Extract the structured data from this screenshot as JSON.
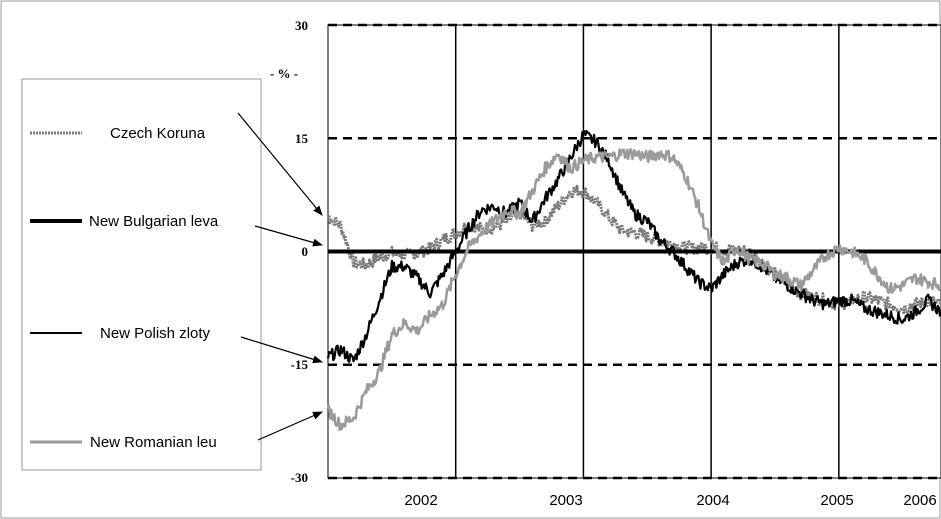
{
  "chart_data": {
    "type": "line",
    "title": "",
    "xlabel": "",
    "ylabel": "- % -",
    "ylim": [
      -30,
      30
    ],
    "yticks": [
      "30",
      "15",
      "0",
      "-15",
      "-30"
    ],
    "x_tick_labels": [
      "2002",
      "2003",
      "2004",
      "2005",
      "2006"
    ],
    "xlim": [
      2001.5,
      2006.3
    ],
    "year_boundaries": [
      2002.5,
      2003.5,
      2004.5,
      2005.5
    ],
    "dashed_gridlines_at": [
      30,
      15,
      -15,
      -30
    ],
    "x": [
      2001.5,
      2001.6,
      2001.7,
      2001.8,
      2001.9,
      2002.0,
      2002.1,
      2002.2,
      2002.3,
      2002.4,
      2002.5,
      2002.6,
      2002.7,
      2002.8,
      2002.9,
      2003.0,
      2003.1,
      2003.2,
      2003.3,
      2003.4,
      2003.5,
      2003.6,
      2003.7,
      2003.8,
      2003.9,
      2004.0,
      2004.1,
      2004.2,
      2004.3,
      2004.4,
      2004.5,
      2004.6,
      2004.7,
      2004.8,
      2004.9,
      2005.0,
      2005.1,
      2005.2,
      2005.3,
      2005.4,
      2005.5,
      2005.6,
      2005.7,
      2005.8,
      2005.9,
      2006.0,
      2006.1,
      2006.2,
      2006.3
    ],
    "series": [
      {
        "name": "Czech Koruna",
        "style": "dotted",
        "color": "#7a7a7a",
        "width": 3,
        "values": [
          4.6,
          3.5,
          -1.5,
          -1.8,
          -0.8,
          -0.2,
          -0.5,
          -0.2,
          0.5,
          1.5,
          2.5,
          3.5,
          3.0,
          3.2,
          4.0,
          5.0,
          3.5,
          4.0,
          6.0,
          8.0,
          8.0,
          6.5,
          4.5,
          2.8,
          2.5,
          2.0,
          1.5,
          1.0,
          0.5,
          0.5,
          0.5,
          0.3,
          0.2,
          0.0,
          -1.5,
          -3.0,
          -4.5,
          -5.5,
          -6.0,
          -6.5,
          -7.0,
          -6.5,
          -6.0,
          -6.5,
          -7.0,
          -7.5,
          -7.0,
          -6.5,
          -7.0
        ]
      },
      {
        "name": "New Bulgarian leva",
        "style": "solid",
        "color": "#000000",
        "width": 4,
        "values": [
          0,
          0,
          0,
          0,
          0,
          0,
          0,
          0,
          0,
          0,
          0,
          0,
          0,
          0,
          0,
          0,
          0,
          0,
          0,
          0,
          0,
          0,
          0,
          0,
          0,
          0,
          0,
          0,
          0,
          0,
          0,
          0,
          0,
          0,
          0,
          0,
          0,
          0,
          0,
          0,
          0,
          0,
          0,
          0,
          0,
          0,
          0,
          0,
          0
        ]
      },
      {
        "name": "New Polish zloty",
        "style": "solid",
        "color": "#000000",
        "width": 2.2,
        "values": [
          -14.0,
          -13.0,
          -14.5,
          -11.0,
          -6.5,
          -2.0,
          -2.0,
          -3.5,
          -5.5,
          -3.0,
          0.0,
          3.0,
          5.5,
          6.0,
          5.0,
          6.5,
          4.0,
          7.0,
          9.5,
          12.5,
          15.5,
          14.5,
          12.0,
          8.0,
          5.0,
          4.0,
          1.5,
          0.0,
          -2.0,
          -4.0,
          -5.0,
          -3.0,
          -1.5,
          -1.0,
          -2.0,
          -3.5,
          -4.5,
          -5.5,
          -6.5,
          -7.0,
          -6.5,
          -6.5,
          -7.5,
          -8.0,
          -8.5,
          -9.0,
          -8.0,
          -6.5,
          -8.0
        ]
      },
      {
        "name": "New Romanian leu",
        "style": "solid",
        "color": "#9a9a9a",
        "width": 2.5,
        "values": [
          -21.0,
          -23.0,
          -22.0,
          -18.5,
          -16.0,
          -11.0,
          -9.5,
          -10.5,
          -8.5,
          -7.0,
          -3.0,
          0.5,
          2.5,
          4.0,
          5.5,
          5.0,
          8.0,
          11.0,
          13.0,
          11.0,
          12.0,
          12.5,
          12.5,
          13.0,
          13.0,
          12.5,
          13.0,
          12.5,
          10.0,
          6.0,
          1.0,
          -1.5,
          0.5,
          -1.0,
          -1.5,
          -3.0,
          -3.5,
          -4.5,
          -2.5,
          -0.5,
          0.5,
          0.0,
          -1.0,
          -3.0,
          -5.0,
          -4.5,
          -3.5,
          -4.0,
          -4.5
        ]
      }
    ],
    "legend": {
      "placement": "left",
      "entries": [
        "Czech Koruna",
        "New Bulgarian leva",
        "New Polish zloty",
        "New Romanian leu"
      ]
    },
    "grid": false
  }
}
